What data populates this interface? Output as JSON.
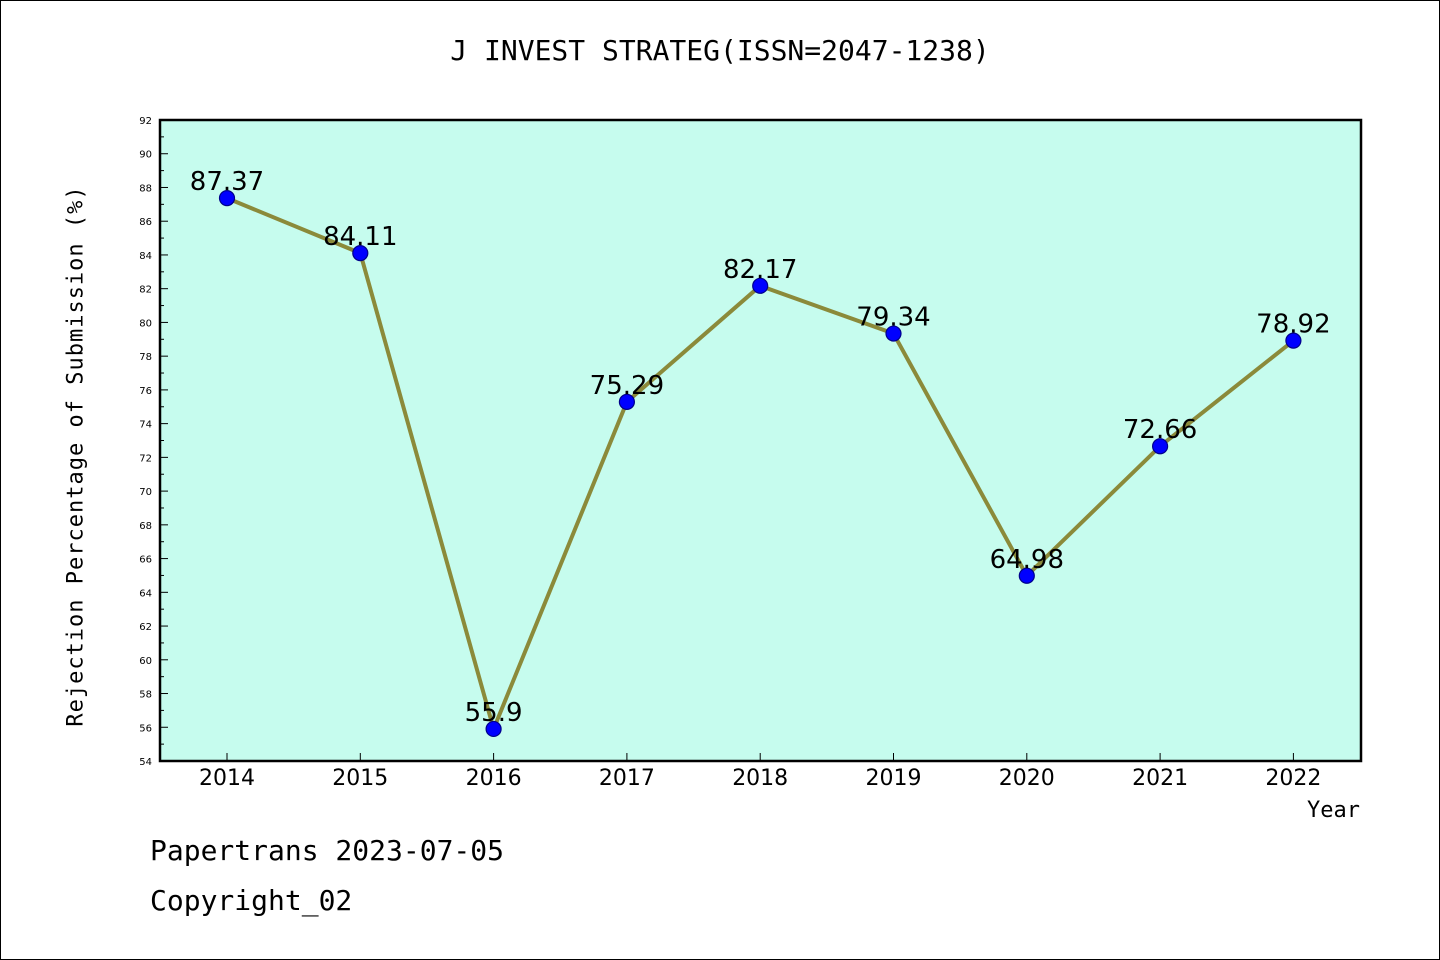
{
  "title": "J INVEST STRATEG(ISSN=2047-1238)",
  "footer": {
    "line1": "Papertrans 2023-07-05",
    "line2": "Copyright_02"
  },
  "colors": {
    "plot_background": "#c6fcee",
    "line": "#8b8a3a",
    "marker_fill": "#0000ff",
    "marker_edge": "#00008b"
  },
  "chart_data": {
    "type": "line",
    "categories": [
      "2014",
      "2015",
      "2016",
      "2017",
      "2018",
      "2019",
      "2020",
      "2021",
      "2022"
    ],
    "values": [
      87.37,
      84.11,
      55.9,
      75.29,
      82.17,
      79.34,
      64.98,
      72.66,
      78.92
    ],
    "data_labels": [
      "87.37",
      "84.11",
      "55.9",
      "75.29",
      "82.17",
      "79.34",
      "64.98",
      "72.66",
      "78.92"
    ],
    "xlabel": "Year",
    "ylabel": "Rejection Percentage of Submission (%)",
    "ylim": [
      54,
      92
    ],
    "yticks": [
      54,
      56,
      58,
      60,
      62,
      64,
      66,
      68,
      70,
      72,
      74,
      76,
      78,
      80,
      82,
      84,
      86,
      88,
      90,
      92
    ],
    "grid": false,
    "legend": "none"
  }
}
